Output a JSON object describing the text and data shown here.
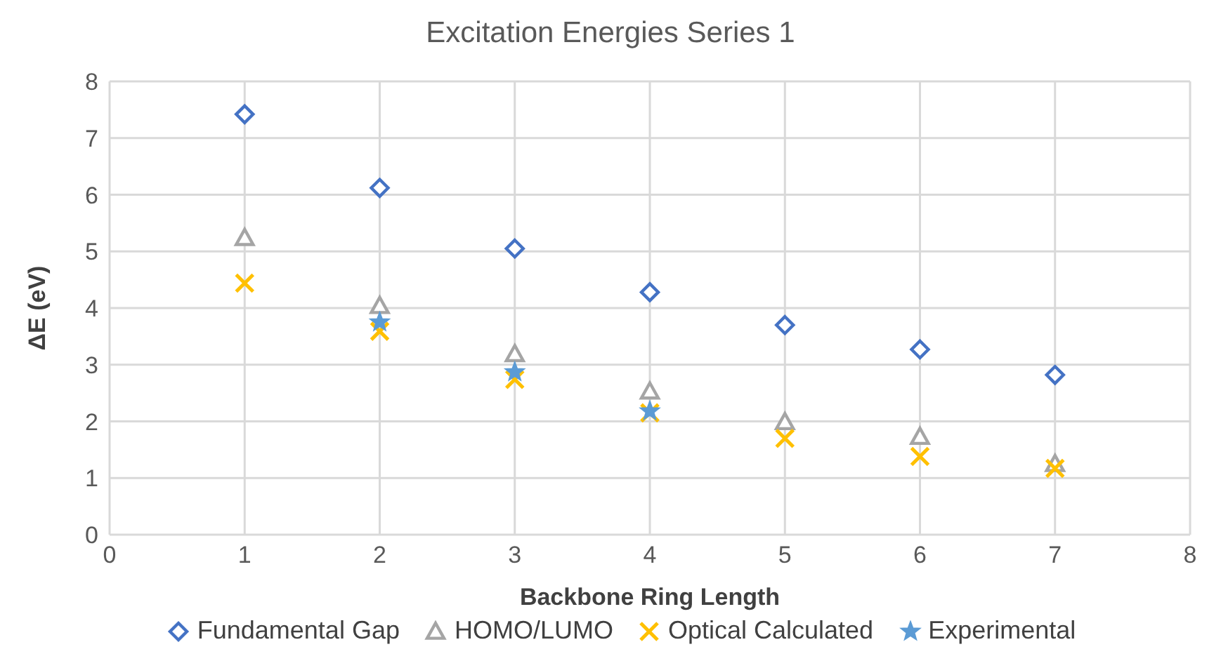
{
  "chart_data": {
    "type": "scatter",
    "title": "Excitation Energies Series 1",
    "xlabel": "Backbone Ring Length",
    "ylabel": "ΔE (eV)",
    "x": [
      1,
      2,
      3,
      4,
      5,
      6,
      7
    ],
    "series": [
      {
        "name": "Fundamental Gap",
        "color": "#4472c4",
        "marker": "diamond",
        "values": [
          7.42,
          6.12,
          5.05,
          4.28,
          3.7,
          3.27,
          2.82
        ]
      },
      {
        "name": "HOMO/LUMO",
        "color": "#a5a5a5",
        "marker": "triangle",
        "values": [
          5.24,
          4.04,
          3.19,
          2.53,
          1.99,
          1.73,
          1.25
        ]
      },
      {
        "name": "Optical Calculated",
        "color": "#ffc000",
        "marker": "cross",
        "values": [
          4.44,
          3.59,
          2.74,
          2.15,
          1.7,
          1.38,
          1.17
        ]
      },
      {
        "name": "Experimental",
        "color": "#5b9bd5",
        "marker": "star",
        "values": [
          null,
          3.75,
          2.87,
          2.18,
          null,
          null,
          null
        ]
      }
    ],
    "xlim": [
      0,
      8
    ],
    "xticks": [
      0,
      1,
      2,
      3,
      4,
      5,
      6,
      7,
      8
    ],
    "ylim": [
      0,
      8
    ],
    "yticks": [
      0,
      1,
      2,
      3,
      4,
      5,
      6,
      7,
      8
    ],
    "grid": true,
    "legend": "bottom"
  }
}
